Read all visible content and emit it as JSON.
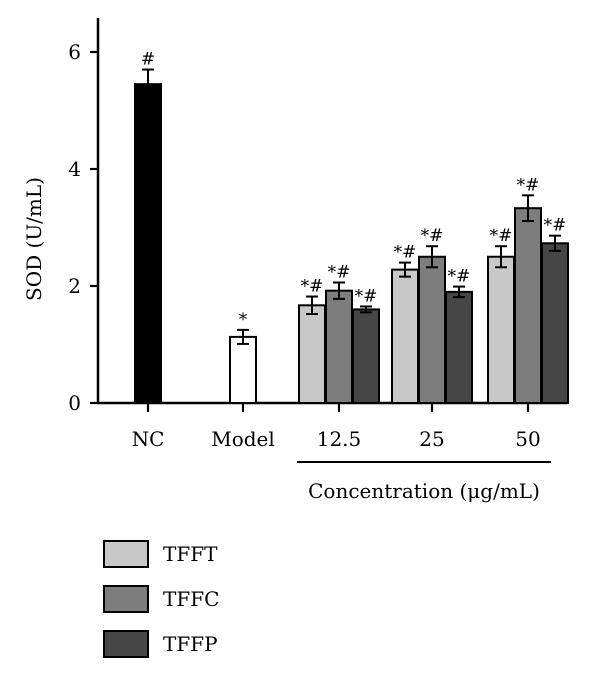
{
  "chart_data": {
    "type": "bar",
    "ylabel": "SOD (U/mL)",
    "xlabel": "Concentration (μg/mL)",
    "ylim": [
      0,
      6.6
    ],
    "yticks": [
      0,
      2,
      4,
      6
    ],
    "ytick_labels": [
      "0",
      "2",
      "4",
      "6"
    ],
    "grid": false,
    "legend_placement": "bottom-left",
    "series": [
      {
        "name": "TFFT",
        "color": "#c8c8c8"
      },
      {
        "name": "TFFC",
        "color": "#7d7d7d"
      },
      {
        "name": "TFFP",
        "color": "#464646"
      }
    ],
    "controls": [
      {
        "label": "NC",
        "value": 5.45,
        "error": 0.25,
        "fill": "#000000",
        "sig": "#"
      },
      {
        "label": "Model",
        "value": 1.13,
        "error": 0.12,
        "fill": "#ffffff",
        "sig": "*"
      }
    ],
    "groups": [
      {
        "label": "12.5",
        "values": [
          1.67,
          1.92,
          1.6
        ],
        "errors": [
          0.15,
          0.14,
          0.05
        ],
        "sig": [
          "*#",
          "*#",
          "*#"
        ]
      },
      {
        "label": "25",
        "values": [
          2.28,
          2.5,
          1.9
        ],
        "errors": [
          0.12,
          0.18,
          0.09
        ],
        "sig": [
          "*#",
          "*#",
          "*#"
        ]
      },
      {
        "label": "50",
        "values": [
          2.5,
          3.33,
          2.73
        ],
        "errors": [
          0.18,
          0.22,
          0.13
        ],
        "sig": [
          "*#",
          "*#",
          "*#"
        ]
      }
    ]
  }
}
